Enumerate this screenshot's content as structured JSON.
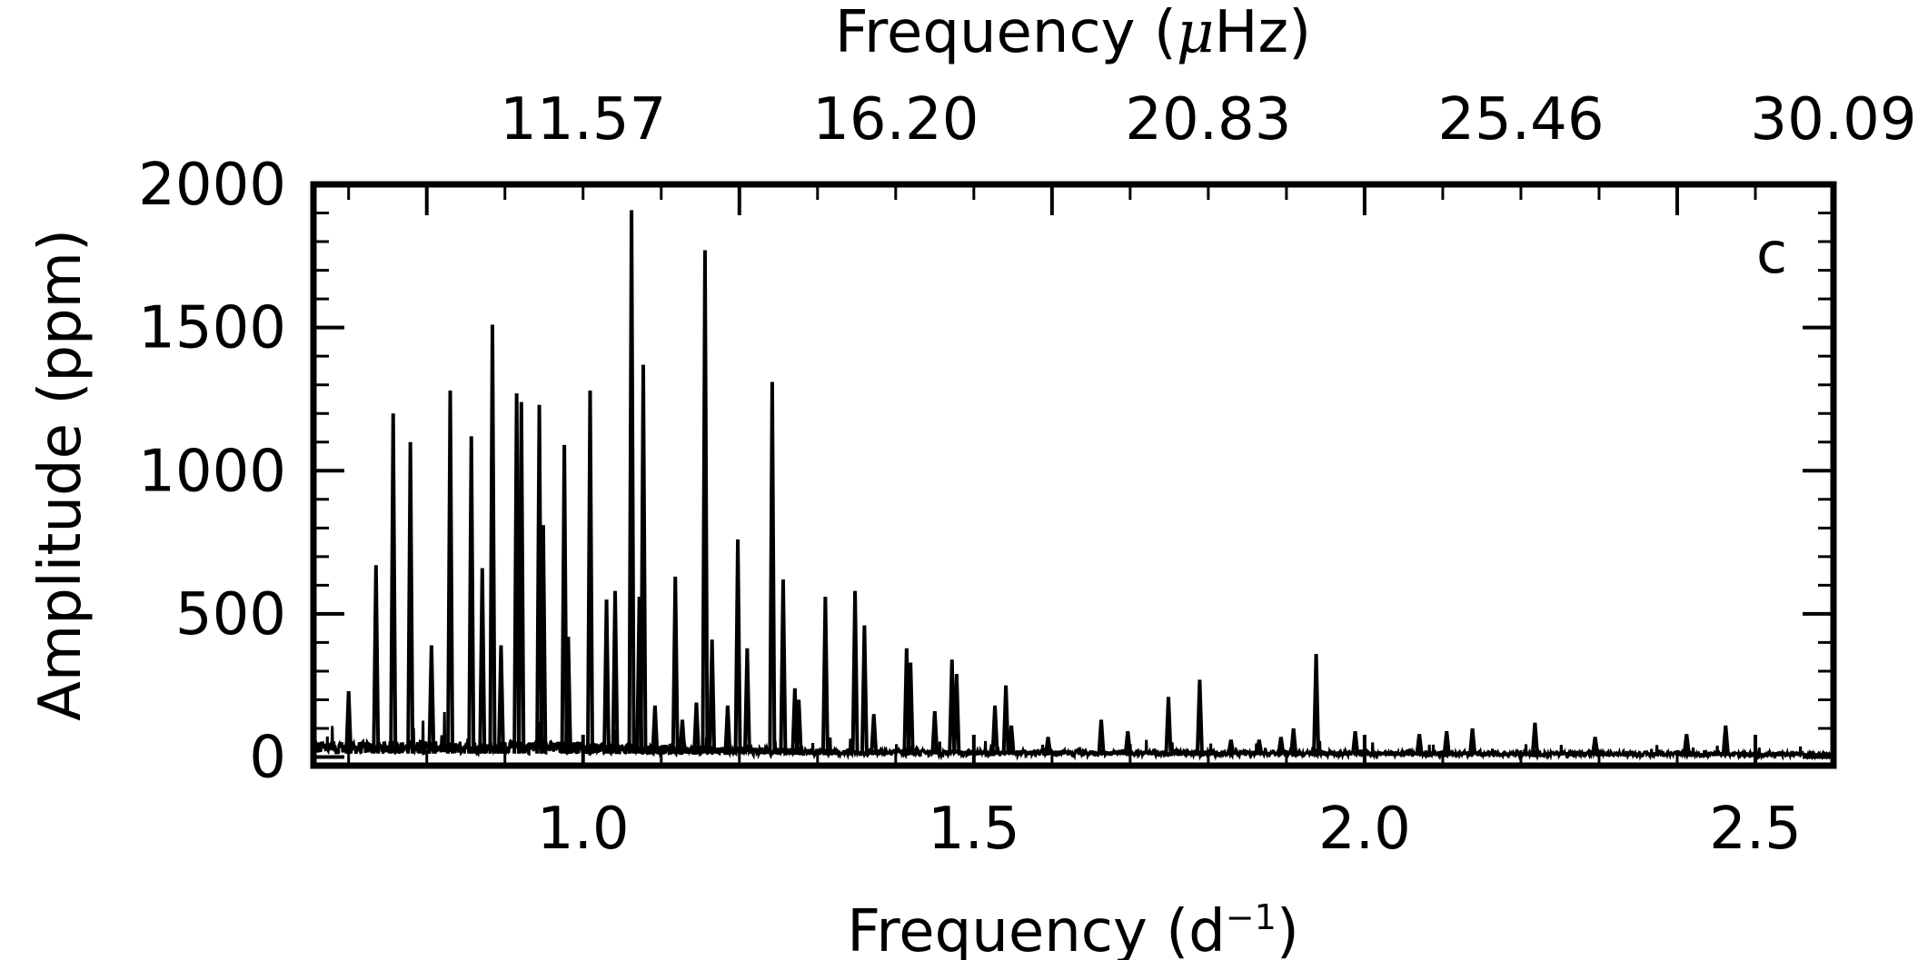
{
  "chart_data": {
    "type": "line",
    "panel_label": "c",
    "xlabel": "Frequency (d",
    "xlabel_sup": "−1",
    "xlabel_close": ")",
    "ylabel": "Amplitude (ppm)",
    "top_xlabel_pre": "Frequency (",
    "top_xlabel_mu": "μ",
    "top_xlabel_post": "Hz)",
    "xlim": [
      0.655,
      2.6
    ],
    "ylim": [
      -30,
      2000
    ],
    "x_ticks": [
      {
        "value": 1.0,
        "label": "1.0"
      },
      {
        "value": 1.5,
        "label": "1.5"
      },
      {
        "value": 2.0,
        "label": "2.0"
      },
      {
        "value": 2.5,
        "label": "2.5"
      }
    ],
    "y_ticks": [
      {
        "value": 0,
        "label": "0"
      },
      {
        "value": 500,
        "label": "500"
      },
      {
        "value": 1000,
        "label": "1000"
      },
      {
        "value": 1500,
        "label": "1500"
      },
      {
        "value": 2000,
        "label": "2000"
      }
    ],
    "top_ticks": [
      {
        "value": 1.0,
        "label": "11.57"
      },
      {
        "value": 1.4,
        "label": "16.20"
      },
      {
        "value": 1.8,
        "label": "20.83"
      },
      {
        "value": 2.2,
        "label": "25.46"
      },
      {
        "value": 2.6,
        "label": "30.09"
      }
    ],
    "grid": false,
    "peaks": [
      [
        0.7,
        230
      ],
      [
        0.735,
        670
      ],
      [
        0.757,
        1200
      ],
      [
        0.779,
        1100
      ],
      [
        0.806,
        390
      ],
      [
        0.83,
        1280
      ],
      [
        0.857,
        1120
      ],
      [
        0.871,
        660
      ],
      [
        0.884,
        1510
      ],
      [
        0.895,
        390
      ],
      [
        0.915,
        1270
      ],
      [
        0.921,
        1240
      ],
      [
        0.944,
        1230
      ],
      [
        0.949,
        810
      ],
      [
        0.976,
        1090
      ],
      [
        0.981,
        420
      ],
      [
        1.009,
        1280
      ],
      [
        1.03,
        550
      ],
      [
        1.041,
        580
      ],
      [
        1.062,
        1910
      ],
      [
        1.072,
        560
      ],
      [
        1.077,
        1370
      ],
      [
        1.092,
        180
      ],
      [
        1.118,
        630
      ],
      [
        1.127,
        130
      ],
      [
        1.145,
        190
      ],
      [
        1.156,
        1770
      ],
      [
        1.165,
        410
      ],
      [
        1.185,
        180
      ],
      [
        1.198,
        760
      ],
      [
        1.21,
        380
      ],
      [
        1.242,
        1310
      ],
      [
        1.256,
        620
      ],
      [
        1.271,
        240
      ],
      [
        1.276,
        200
      ],
      [
        1.31,
        560
      ],
      [
        1.348,
        580
      ],
      [
        1.36,
        460
      ],
      [
        1.372,
        150
      ],
      [
        1.414,
        380
      ],
      [
        1.419,
        330
      ],
      [
        1.45,
        160
      ],
      [
        1.472,
        340
      ],
      [
        1.478,
        290
      ],
      [
        1.527,
        180
      ],
      [
        1.541,
        250
      ],
      [
        1.548,
        110
      ],
      [
        1.595,
        70
      ],
      [
        1.663,
        130
      ],
      [
        1.697,
        90
      ],
      [
        1.749,
        210
      ],
      [
        1.789,
        270
      ],
      [
        1.829,
        60
      ],
      [
        1.865,
        60
      ],
      [
        1.893,
        70
      ],
      [
        1.909,
        100
      ],
      [
        1.938,
        360
      ],
      [
        1.988,
        90
      ],
      [
        2.07,
        80
      ],
      [
        2.105,
        90
      ],
      [
        2.138,
        100
      ],
      [
        2.218,
        120
      ],
      [
        2.295,
        70
      ],
      [
        2.412,
        80
      ],
      [
        2.462,
        110
      ]
    ]
  }
}
